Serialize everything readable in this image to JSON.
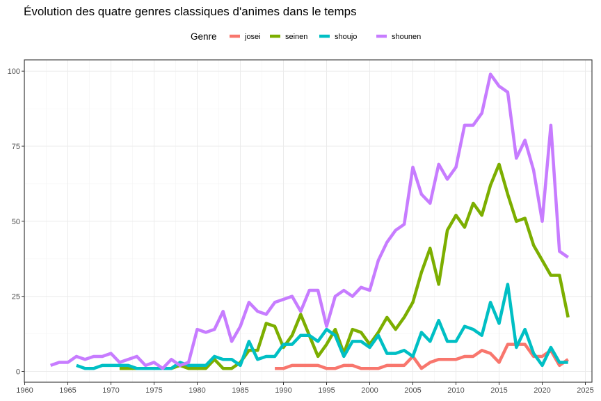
{
  "chart_data": {
    "type": "line",
    "title": "Évolution des quatre genres classiques d'animes dans le temps",
    "xlabel": "",
    "ylabel": "",
    "legend_title": "Genre",
    "legend_position": "top",
    "grid": true,
    "xlim": [
      1960,
      2025
    ],
    "ylim": [
      0,
      100
    ],
    "x_ticks": [
      1960,
      1965,
      1970,
      1975,
      1980,
      1985,
      1990,
      1995,
      2000,
      2005,
      2010,
      2015,
      2020,
      2025
    ],
    "y_ticks": [
      0,
      25,
      50,
      75,
      100
    ],
    "series": [
      {
        "name": "josei",
        "color": "#F8766D",
        "points": [
          [
            1989,
            1
          ],
          [
            1990,
            1
          ],
          [
            1991,
            2
          ],
          [
            1992,
            2
          ],
          [
            1993,
            2
          ],
          [
            1994,
            2
          ],
          [
            1995,
            1
          ],
          [
            1996,
            1
          ],
          [
            1997,
            2
          ],
          [
            1998,
            2
          ],
          [
            1999,
            1
          ],
          [
            2000,
            1
          ],
          [
            2001,
            1
          ],
          [
            2002,
            2
          ],
          [
            2003,
            2
          ],
          [
            2004,
            2
          ],
          [
            2005,
            5
          ],
          [
            2006,
            1
          ],
          [
            2007,
            3
          ],
          [
            2008,
            4
          ],
          [
            2009,
            4
          ],
          [
            2010,
            4
          ],
          [
            2011,
            5
          ],
          [
            2012,
            5
          ],
          [
            2013,
            7
          ],
          [
            2014,
            6
          ],
          [
            2015,
            3
          ],
          [
            2016,
            9
          ],
          [
            2017,
            9
          ],
          [
            2018,
            9
          ],
          [
            2019,
            5
          ],
          [
            2020,
            5
          ],
          [
            2021,
            7
          ],
          [
            2022,
            2
          ],
          [
            2023,
            4
          ]
        ]
      },
      {
        "name": "seinen",
        "color": "#7CAE00",
        "points": [
          [
            1971,
            1
          ],
          [
            1972,
            1
          ],
          [
            1973,
            1
          ],
          [
            1974,
            1
          ],
          [
            1975,
            1
          ],
          [
            1976,
            1
          ],
          [
            1977,
            1
          ],
          [
            1978,
            2
          ],
          [
            1979,
            1
          ],
          [
            1980,
            1
          ],
          [
            1981,
            1
          ],
          [
            1982,
            4
          ],
          [
            1983,
            1
          ],
          [
            1984,
            1
          ],
          [
            1985,
            3
          ],
          [
            1986,
            7
          ],
          [
            1987,
            7
          ],
          [
            1988,
            16
          ],
          [
            1989,
            15
          ],
          [
            1990,
            8
          ],
          [
            1991,
            12
          ],
          [
            1992,
            19
          ],
          [
            1993,
            12
          ],
          [
            1994,
            5
          ],
          [
            1995,
            9
          ],
          [
            1996,
            14
          ],
          [
            1997,
            6
          ],
          [
            1998,
            14
          ],
          [
            1999,
            13
          ],
          [
            2000,
            9
          ],
          [
            2001,
            13
          ],
          [
            2002,
            18
          ],
          [
            2003,
            14
          ],
          [
            2004,
            18
          ],
          [
            2005,
            23
          ],
          [
            2006,
            33
          ],
          [
            2007,
            41
          ],
          [
            2008,
            29
          ],
          [
            2009,
            47
          ],
          [
            2010,
            52
          ],
          [
            2011,
            48
          ],
          [
            2012,
            56
          ],
          [
            2013,
            52
          ],
          [
            2014,
            62
          ],
          [
            2015,
            69
          ],
          [
            2016,
            59
          ],
          [
            2017,
            50
          ],
          [
            2018,
            51
          ],
          [
            2019,
            42
          ],
          [
            2020,
            37
          ],
          [
            2021,
            32
          ],
          [
            2022,
            32
          ],
          [
            2023,
            18
          ]
        ]
      },
      {
        "name": "shoujo",
        "color": "#00BFC4",
        "points": [
          [
            1966,
            2
          ],
          [
            1967,
            1
          ],
          [
            1968,
            1
          ],
          [
            1969,
            2
          ],
          [
            1970,
            2
          ],
          [
            1971,
            2
          ],
          [
            1972,
            2
          ],
          [
            1973,
            1
          ],
          [
            1974,
            1
          ],
          [
            1975,
            1
          ],
          [
            1976,
            1
          ],
          [
            1977,
            1
          ],
          [
            1978,
            3
          ],
          [
            1979,
            2
          ],
          [
            1980,
            2
          ],
          [
            1981,
            2
          ],
          [
            1982,
            5
          ],
          [
            1983,
            4
          ],
          [
            1984,
            4
          ],
          [
            1985,
            2
          ],
          [
            1986,
            10
          ],
          [
            1987,
            4
          ],
          [
            1988,
            5
          ],
          [
            1989,
            5
          ],
          [
            1990,
            9
          ],
          [
            1991,
            9
          ],
          [
            1992,
            12
          ],
          [
            1993,
            12
          ],
          [
            1994,
            10
          ],
          [
            1995,
            14
          ],
          [
            1996,
            12
          ],
          [
            1997,
            5
          ],
          [
            1998,
            10
          ],
          [
            1999,
            10
          ],
          [
            2000,
            8
          ],
          [
            2001,
            12
          ],
          [
            2002,
            6
          ],
          [
            2003,
            6
          ],
          [
            2004,
            7
          ],
          [
            2005,
            5
          ],
          [
            2006,
            13
          ],
          [
            2007,
            10
          ],
          [
            2008,
            17
          ],
          [
            2009,
            10
          ],
          [
            2010,
            10
          ],
          [
            2011,
            15
          ],
          [
            2012,
            14
          ],
          [
            2013,
            12
          ],
          [
            2014,
            23
          ],
          [
            2015,
            16
          ],
          [
            2016,
            29
          ],
          [
            2017,
            8
          ],
          [
            2018,
            14
          ],
          [
            2019,
            6
          ],
          [
            2020,
            2
          ],
          [
            2021,
            8
          ],
          [
            2022,
            3
          ],
          [
            2023,
            3
          ]
        ]
      },
      {
        "name": "shounen",
        "color": "#C77CFF",
        "points": [
          [
            1963,
            2
          ],
          [
            1964,
            3
          ],
          [
            1965,
            3
          ],
          [
            1966,
            5
          ],
          [
            1967,
            4
          ],
          [
            1968,
            5
          ],
          [
            1969,
            5
          ],
          [
            1970,
            6
          ],
          [
            1971,
            3
          ],
          [
            1972,
            4
          ],
          [
            1973,
            5
          ],
          [
            1974,
            2
          ],
          [
            1975,
            3
          ],
          [
            1976,
            1
          ],
          [
            1977,
            4
          ],
          [
            1978,
            2
          ],
          [
            1979,
            3
          ],
          [
            1980,
            14
          ],
          [
            1981,
            13
          ],
          [
            1982,
            14
          ],
          [
            1983,
            20
          ],
          [
            1984,
            10
          ],
          [
            1985,
            15
          ],
          [
            1986,
            23
          ],
          [
            1987,
            20
          ],
          [
            1988,
            19
          ],
          [
            1989,
            23
          ],
          [
            1990,
            24
          ],
          [
            1991,
            25
          ],
          [
            1992,
            20
          ],
          [
            1993,
            27
          ],
          [
            1994,
            27
          ],
          [
            1995,
            15
          ],
          [
            1996,
            25
          ],
          [
            1997,
            27
          ],
          [
            1998,
            25
          ],
          [
            1999,
            28
          ],
          [
            2000,
            27
          ],
          [
            2001,
            37
          ],
          [
            2002,
            43
          ],
          [
            2003,
            47
          ],
          [
            2004,
            49
          ],
          [
            2005,
            68
          ],
          [
            2006,
            59
          ],
          [
            2007,
            56
          ],
          [
            2008,
            69
          ],
          [
            2009,
            64
          ],
          [
            2010,
            68
          ],
          [
            2011,
            82
          ],
          [
            2012,
            82
          ],
          [
            2013,
            86
          ],
          [
            2014,
            99
          ],
          [
            2015,
            95
          ],
          [
            2016,
            93
          ],
          [
            2017,
            71
          ],
          [
            2018,
            77
          ],
          [
            2019,
            67
          ],
          [
            2020,
            50
          ],
          [
            2021,
            82
          ],
          [
            2022,
            40
          ],
          [
            2023,
            38
          ]
        ]
      }
    ]
  }
}
